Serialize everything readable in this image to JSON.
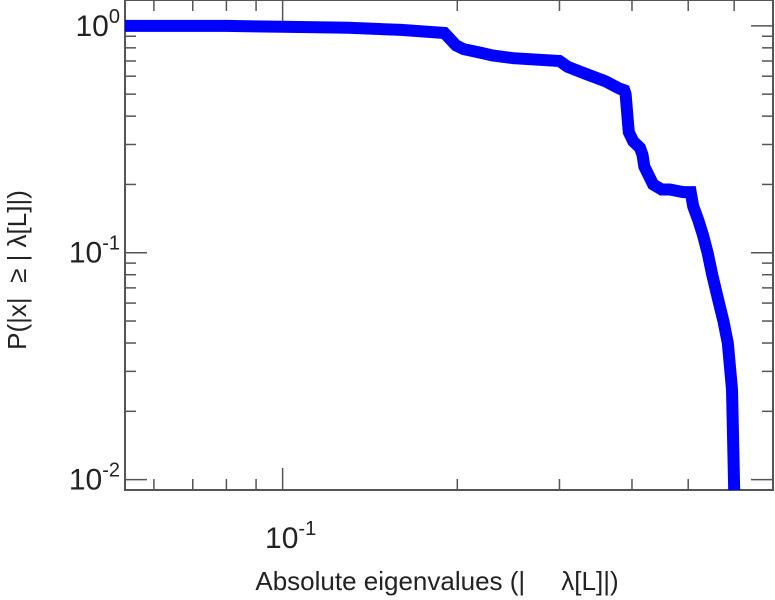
{
  "chart_data": {
    "type": "line",
    "title": "",
    "xlabel": "Absolute eigenvalues (|     λ[L]|)",
    "ylabel": "P(|x|  ≥ | λ[L]|)",
    "xscale": "log",
    "yscale": "log",
    "xlim": [
      0.0535,
      0.7
    ],
    "ylim": [
      0.009,
      1.3
    ],
    "grid": false,
    "legend": "none",
    "line_color": "#0000ff",
    "x_tick_labels": [
      {
        "value": 0.1,
        "base": "10",
        "exp": "-1"
      }
    ],
    "y_tick_labels": [
      {
        "value": 1,
        "base": "10",
        "exp": "0"
      },
      {
        "value": 0.1,
        "base": "10",
        "exp": "-1"
      },
      {
        "value": 0.01,
        "base": "10",
        "exp": "-2"
      }
    ],
    "x_major_ticks": [
      0.1
    ],
    "x_minor_ticks": [
      0.06,
      0.07,
      0.08,
      0.09,
      0.2,
      0.3,
      0.4,
      0.5,
      0.6,
      0.7
    ],
    "y_major_ticks": [
      0.01,
      0.1,
      1
    ],
    "y_minor_ticks": [
      0.02,
      0.03,
      0.04,
      0.05,
      0.06,
      0.07,
      0.08,
      0.09,
      0.2,
      0.3,
      0.4,
      0.5,
      0.6,
      0.7,
      0.8,
      0.9
    ],
    "series": [
      {
        "x": [
          0.0535,
          0.08,
          0.1,
          0.13,
          0.16,
          0.19,
          0.199,
          0.205,
          0.22,
          0.23,
          0.25,
          0.3,
          0.31,
          0.33,
          0.36,
          0.38,
          0.388,
          0.39,
          0.395,
          0.402,
          0.413,
          0.417,
          0.42,
          0.435,
          0.45,
          0.465,
          0.49,
          0.505,
          0.51,
          0.52,
          0.53,
          0.54,
          0.55,
          0.565,
          0.575,
          0.585,
          0.595,
          0.6
        ],
        "y": [
          1.0,
          1.0,
          0.99,
          0.98,
          0.96,
          0.93,
          0.82,
          0.79,
          0.76,
          0.74,
          0.72,
          0.7,
          0.66,
          0.62,
          0.57,
          0.53,
          0.52,
          0.5,
          0.34,
          0.31,
          0.29,
          0.27,
          0.24,
          0.2,
          0.19,
          0.19,
          0.185,
          0.185,
          0.16,
          0.14,
          0.12,
          0.1,
          0.08,
          0.06,
          0.05,
          0.04,
          0.025,
          0.009
        ]
      }
    ]
  }
}
